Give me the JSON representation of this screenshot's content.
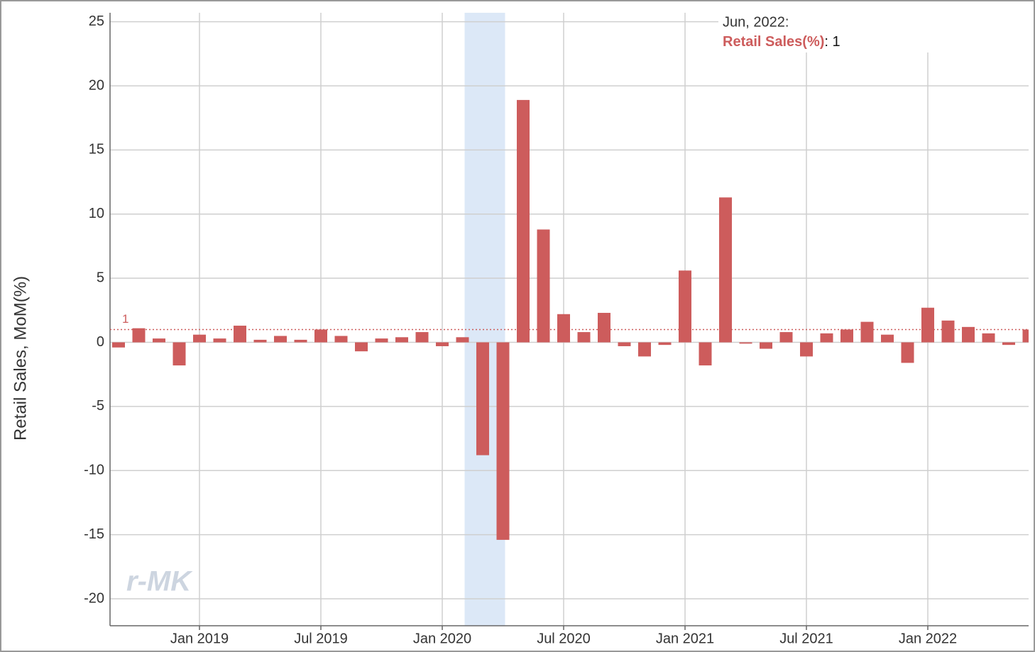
{
  "chart_data": {
    "type": "bar",
    "y_label": "Retail Sales, MoM(%)",
    "series": [
      {
        "name": "Retail Sales(%)",
        "color": "#cd5c5c",
        "values": [
          -0.4,
          1.1,
          0.3,
          -1.8,
          0.6,
          0.3,
          1.3,
          0.2,
          0.5,
          0.2,
          1.0,
          0.5,
          -0.7,
          0.3,
          0.4,
          0.8,
          -0.3,
          0.4,
          -8.8,
          -15.4,
          18.9,
          8.8,
          2.2,
          0.8,
          2.3,
          -0.3,
          -1.1,
          -0.2,
          5.6,
          -1.8,
          11.3,
          -0.1,
          -0.5,
          0.8,
          -1.1,
          0.7,
          1.0,
          1.6,
          0.6,
          -1.6,
          2.7,
          1.7,
          1.2,
          0.7,
          -0.2,
          1.0
        ]
      }
    ],
    "x": [
      "2018-09",
      "2018-10",
      "2018-11",
      "2018-12",
      "2019-01",
      "2019-02",
      "2019-03",
      "2019-04",
      "2019-05",
      "2019-06",
      "2019-07",
      "2019-08",
      "2019-09",
      "2019-10",
      "2019-11",
      "2019-12",
      "2020-01",
      "2020-02",
      "2020-03",
      "2020-04",
      "2020-05",
      "2020-06",
      "2020-07",
      "2020-08",
      "2020-09",
      "2020-10",
      "2020-11",
      "2020-12",
      "2021-01",
      "2021-02",
      "2021-03",
      "2021-04",
      "2021-05",
      "2021-06",
      "2021-07",
      "2021-08",
      "2021-09",
      "2021-10",
      "2021-11",
      "2021-12",
      "2022-01",
      "2022-02",
      "2022-03",
      "2022-04",
      "2022-05",
      "2022-06"
    ],
    "xticks": [
      {
        "value": "2019-01",
        "label": "Jan 2019"
      },
      {
        "value": "2019-07",
        "label": "Jul 2019"
      },
      {
        "value": "2020-01",
        "label": "Jan 2020"
      },
      {
        "value": "2020-07",
        "label": "Jul 2020"
      },
      {
        "value": "2021-01",
        "label": "Jan 2021"
      },
      {
        "value": "2021-07",
        "label": "Jul 2021"
      },
      {
        "value": "2022-01",
        "label": "Jan 2022"
      }
    ],
    "ylim": [
      -22.1,
      25.7
    ],
    "yticks": [
      -20,
      -15,
      -10,
      -5,
      0,
      5,
      10,
      15,
      20,
      25
    ],
    "grid": true,
    "shaded_range": {
      "x": [
        "2020-02",
        "2020-04"
      ],
      "color": "#dce8f7"
    },
    "reference_line": {
      "value": 1,
      "label": "1",
      "color": "#cd5c5c"
    },
    "tooltip": {
      "date": "Jun, 2022:",
      "separator": ": ",
      "value": 1
    },
    "watermark": "r-MK"
  }
}
